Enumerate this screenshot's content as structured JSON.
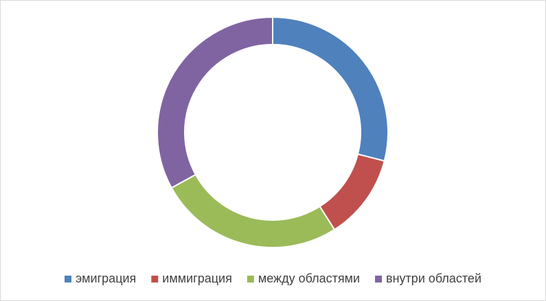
{
  "chart_data": {
    "type": "donut",
    "categories": [
      "эмиграция",
      "иммиграция",
      "между областями",
      "внутри областей"
    ],
    "values": [
      29,
      12,
      26,
      33
    ],
    "colors": [
      "#4f81bd",
      "#c0504d",
      "#9bbb59",
      "#8064a2"
    ],
    "legend": "bottom"
  }
}
